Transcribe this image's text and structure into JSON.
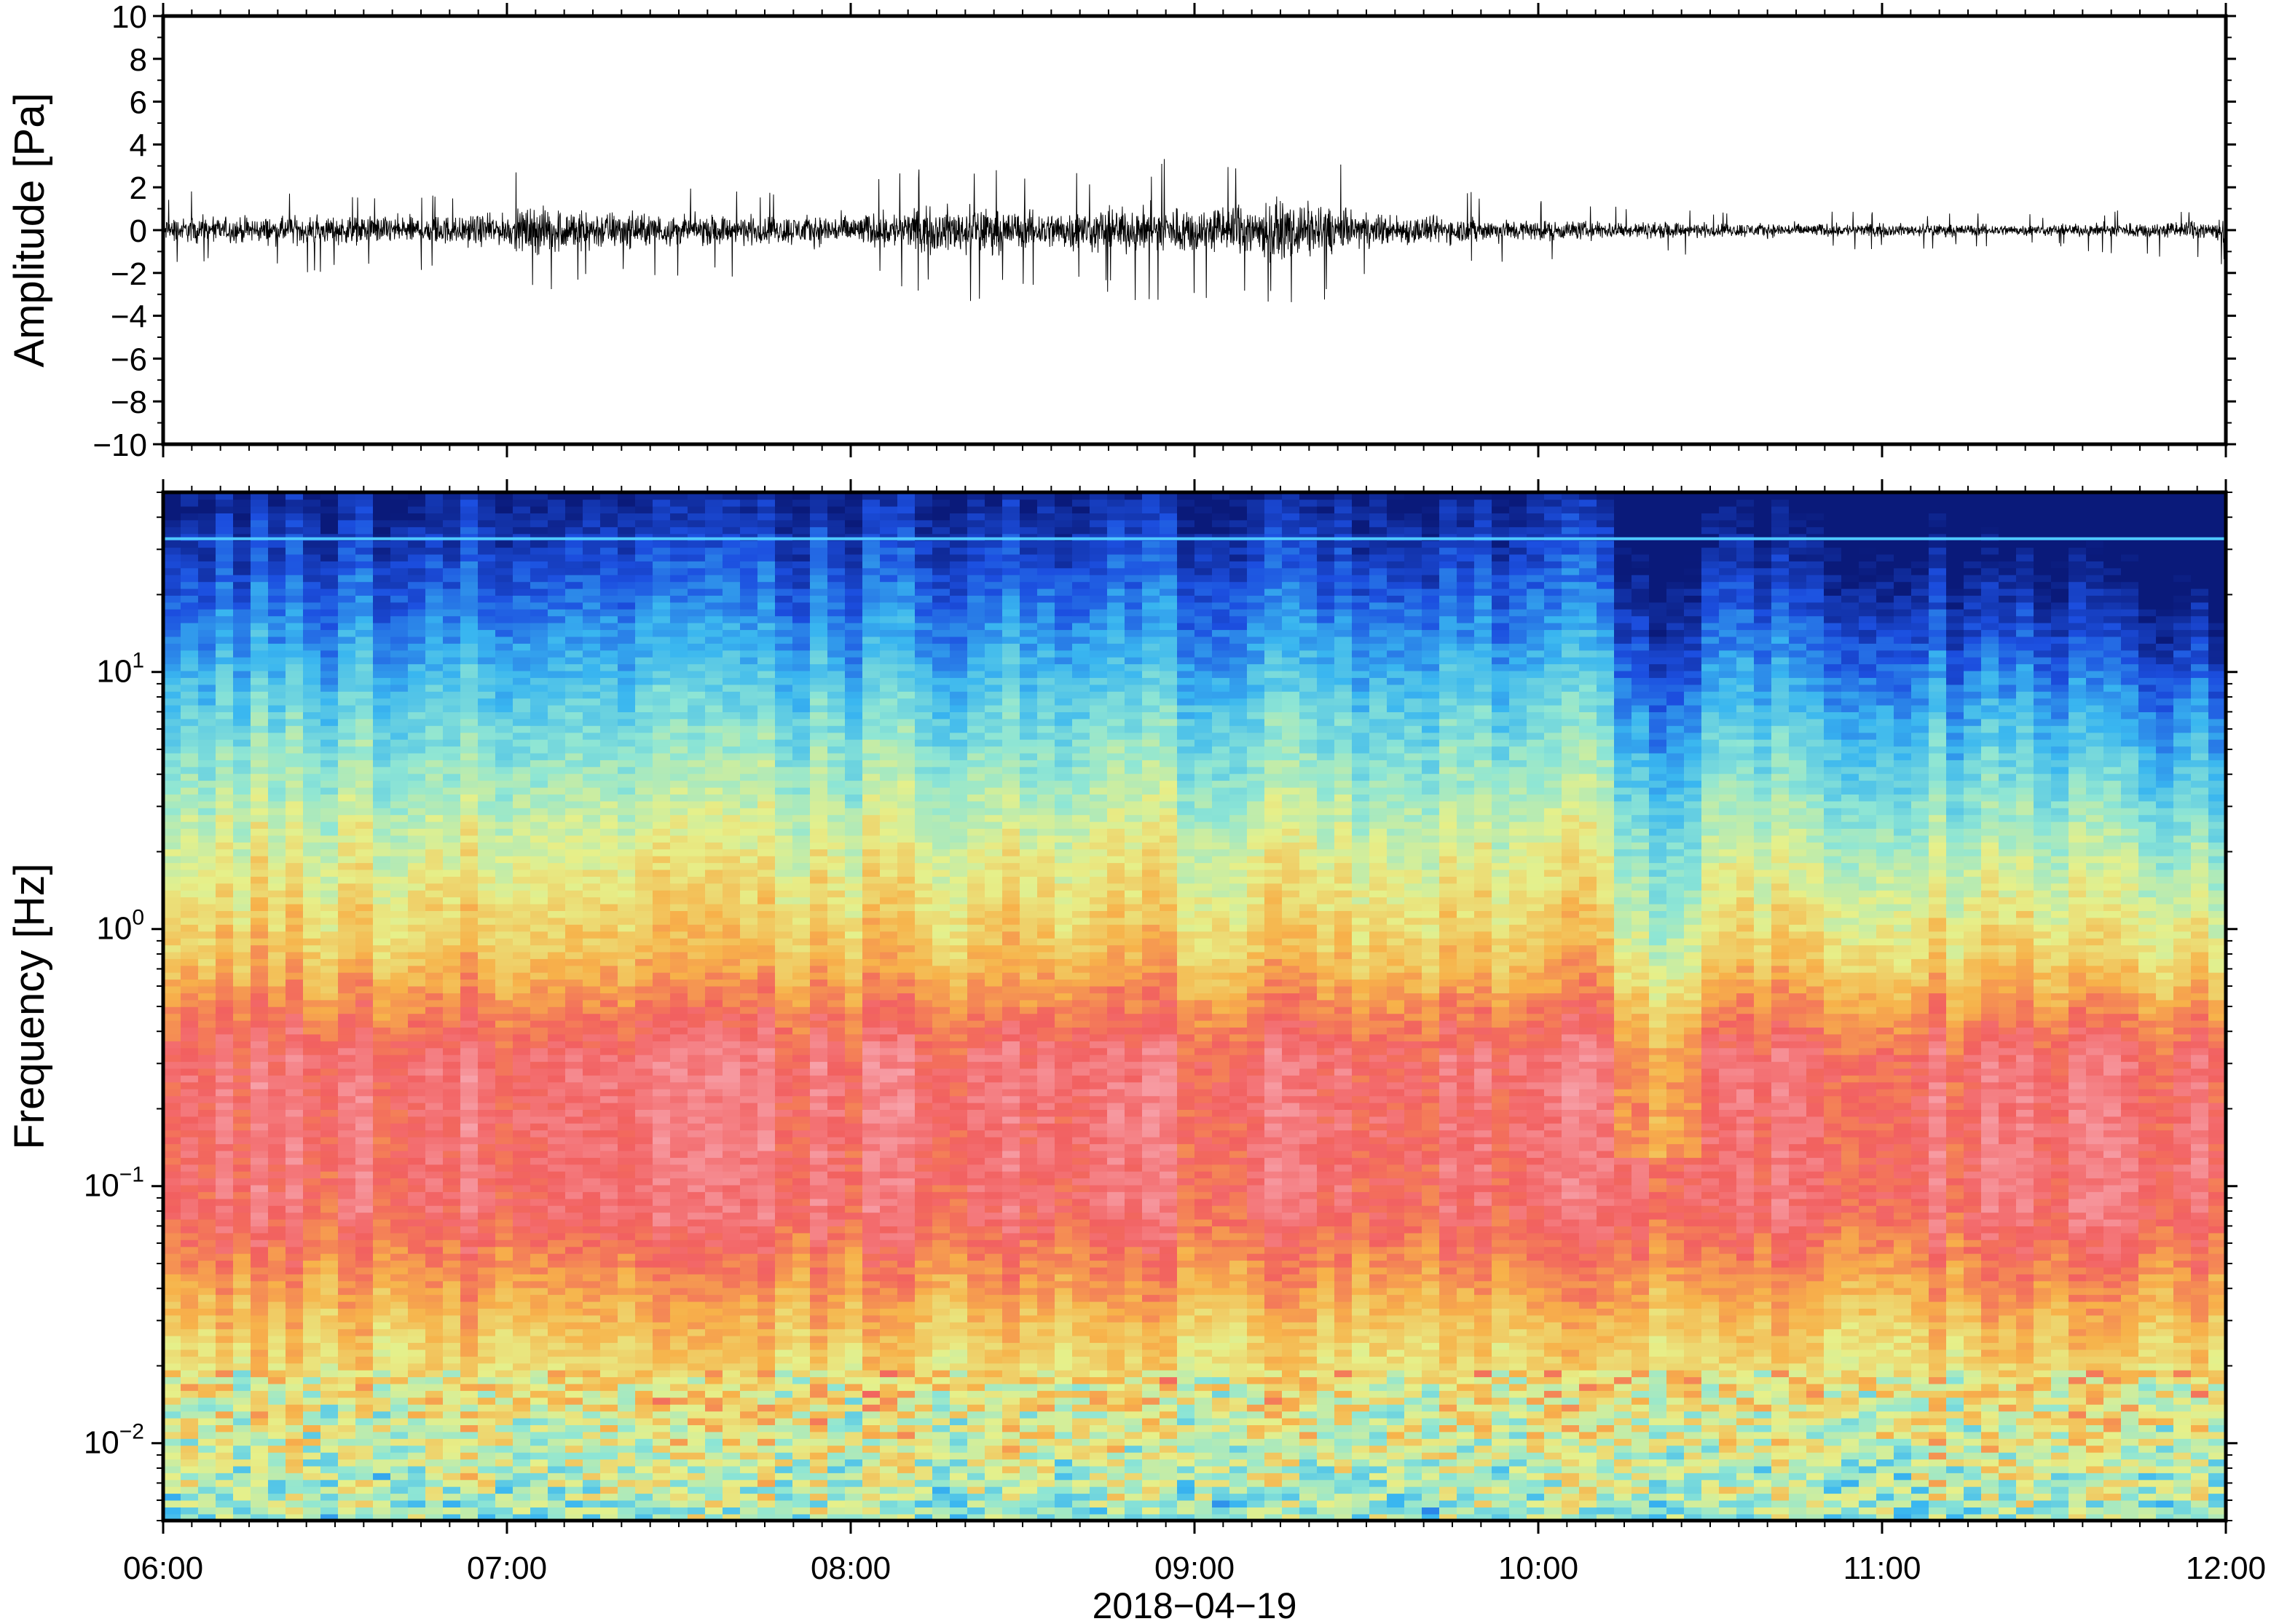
{
  "chart_data": [
    {
      "type": "line",
      "ylabel": "Amplitude [Pa]",
      "ylim": [
        -10,
        10
      ],
      "yticks": [
        10,
        8,
        6,
        4,
        2,
        0,
        -2,
        -4,
        -6,
        -8,
        -10
      ],
      "ytick_labels": [
        "10",
        "8",
        "6",
        "4",
        "2",
        "0",
        "−2",
        "−4",
        "−6",
        "−8",
        "−10"
      ],
      "xlim": [
        "06:00",
        "12:00"
      ],
      "grid": false,
      "series": [
        {
          "x": [
            "06:00",
            "06:30",
            "07:00",
            "07:05",
            "07:30",
            "08:00",
            "08:20",
            "08:30",
            "09:00",
            "09:20",
            "09:30",
            "10:00",
            "10:30",
            "11:00",
            "11:30",
            "12:00"
          ],
          "y_envelope_max": [
            1.8,
            1.9,
            2.0,
            4.2,
            2.0,
            2.2,
            3.7,
            2.6,
            3.6,
            4.3,
            2.4,
            1.4,
            1.0,
            0.9,
            0.8,
            1.2
          ],
          "y_envelope_min": [
            -1.8,
            -2.0,
            -2.5,
            -3.0,
            -2.2,
            -2.2,
            -3.4,
            -2.8,
            -3.6,
            -3.8,
            -2.4,
            -1.5,
            -1.1,
            -0.9,
            -0.8,
            -1.8
          ]
        }
      ],
      "color": "#000000"
    },
    {
      "type": "heatmap",
      "ylabel": "Frequency [Hz]",
      "yscale": "log",
      "ylim": [
        0.005,
        50
      ],
      "yticks": [
        0.01,
        0.1,
        1,
        10
      ],
      "ytick_labels": [
        {
          "base": "10",
          "exp": "−2"
        },
        {
          "base": "10",
          "exp": "−1"
        },
        {
          "base": "10",
          "exp": "0"
        },
        {
          "base": "10",
          "exp": "1"
        }
      ],
      "xlabel": "2018−04−19",
      "xlim": [
        "06:00",
        "12:00"
      ],
      "xtick_labels": [
        "06:00",
        "07:00",
        "08:00",
        "09:00",
        "10:00",
        "11:00",
        "12:00"
      ],
      "colormap": "rainbow",
      "colormap_stops": [
        "#0a1a7a",
        "#1c4fe0",
        "#39b6f0",
        "#8fe6d4",
        "#e6f08a",
        "#f7b24a",
        "#f26060",
        "#f7a0a8"
      ],
      "constant_line_hz": 33,
      "constant_line_color": "#4fc8ff",
      "grid": false
    }
  ]
}
